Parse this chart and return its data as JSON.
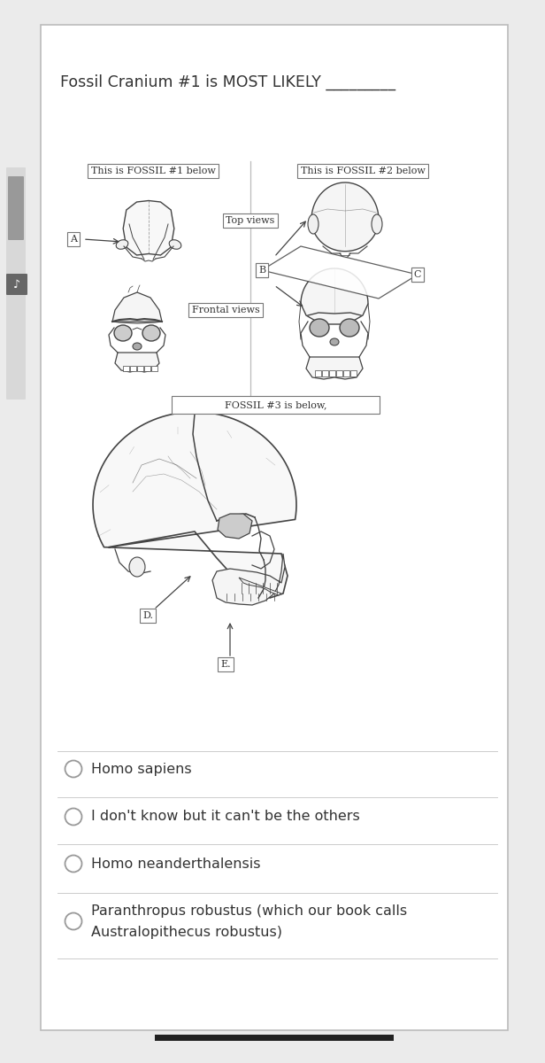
{
  "title": "Fossil Cranium #1 is MOST LIKELY _________",
  "title_fontsize": 12.5,
  "bg_color": "#ebebeb",
  "page_bg": "#ffffff",
  "border_color": "#bbbbbb",
  "text_color": "#555555",
  "dark_text": "#333333",
  "label_fossil1": "This is FOSSIL #1 below",
  "label_fossil2": "This is FOSSIL #2 below",
  "label_topviews": "Top views",
  "label_frontalviews": "Frontal views",
  "label_fossil3": "FOSSIL #3 is below,",
  "label_A": "A",
  "label_B": "B",
  "label_C": "C",
  "label_D": "D.",
  "label_E": "E.",
  "choices": [
    "Homo sapiens",
    "I don't know but it can't be the others",
    "Homo neanderthalensis",
    "Paranthropus robustus (which our book calls\nAustralopithecus robustus)"
  ],
  "separator_color": "#cccccc",
  "circle_color": "#999999",
  "skull_color": "#444444",
  "line_color": "#666666"
}
